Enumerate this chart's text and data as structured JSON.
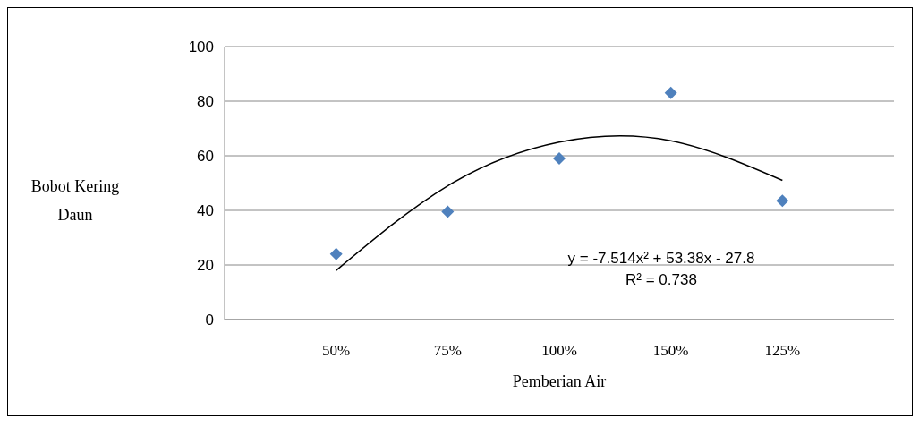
{
  "chart_data": {
    "type": "scatter",
    "xlabel": "Pemberian Air",
    "ylabel": "Bobot Kering Daun",
    "categories": [
      "50%",
      "75%",
      "100%",
      "150%",
      "125%"
    ],
    "ylim": [
      0,
      100
    ],
    "yticks": [
      0,
      20,
      40,
      60,
      80,
      100
    ],
    "grid": "y",
    "series": [
      {
        "color": "#4f81bd",
        "marker": "diamond",
        "values": [
          24,
          39.5,
          59,
          83,
          43.5
        ]
      },
      {
        "type": "line",
        "color": "#000000",
        "marker": "none",
        "values": [
          18,
          49,
          65,
          65.5,
          51
        ]
      }
    ],
    "annotations": [
      "y = -7.514x² + 53.38x - 27.8",
      "R² = 0.738"
    ]
  }
}
